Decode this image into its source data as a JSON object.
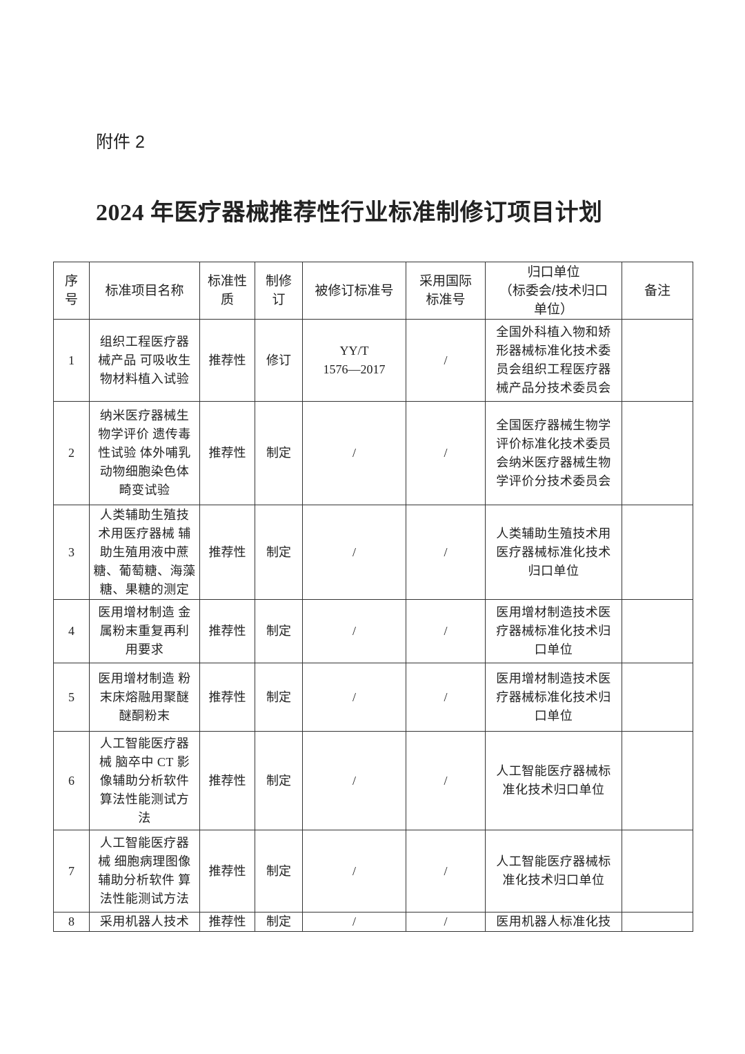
{
  "attachment_label": "附件 2",
  "title": "2024 年医疗器械推荐性行业标准制修订项目计划",
  "table": {
    "headers": [
      "序\n号",
      "标准项目名称",
      "标准性\n质",
      "制修\n订",
      "被修订标准号",
      "采用国际\n标准号",
      "归口单位\n（标委会/技术归口\n单位）",
      "备注"
    ],
    "rows": [
      [
        "1",
        "组织工程医疗器\n械产品  可吸收生\n物材料植入试验",
        "推荐性",
        "修订",
        "YY/T\n1576—2017",
        "/",
        "全国外科植入物和矫\n形器械标准化技术委\n员会组织工程医疗器\n械产品分技术委员会",
        ""
      ],
      [
        "2",
        "纳米医疗器械生\n物学评价  遗传毒\n性试验  体外哺乳\n动物细胞染色体\n畸变试验",
        "推荐性",
        "制定",
        "/",
        "/",
        "全国医疗器械生物学\n评价标准化技术委员\n会纳米医疗器械生物\n学评价分技术委员会",
        ""
      ],
      [
        "3",
        "人类辅助生殖技\n术用医疗器械  辅\n助生殖用液中蔗\n糖、葡萄糖、海藻\n糖、果糖的测定",
        "推荐性",
        "制定",
        "/",
        "/",
        "人类辅助生殖技术用\n医疗器械标准化技术\n归口单位",
        ""
      ],
      [
        "4",
        "医用增材制造  金\n属粉末重复再利\n用要求",
        "推荐性",
        "制定",
        "/",
        "/",
        "医用增材制造技术医\n疗器械标准化技术归\n口单位",
        ""
      ],
      [
        "5",
        "医用增材制造  粉\n末床熔融用聚醚\n醚酮粉末",
        "推荐性",
        "制定",
        "/",
        "/",
        "医用增材制造技术医\n疗器械标准化技术归\n口单位",
        ""
      ],
      [
        "6",
        "人工智能医疗器\n械  脑卒中 CT 影\n像辅助分析软件\n算法性能测试方\n法",
        "推荐性",
        "制定",
        "/",
        "/",
        "人工智能医疗器械标\n准化技术归口单位",
        ""
      ],
      [
        "7",
        "人工智能医疗器\n械  细胞病理图像\n辅助分析软件  算\n法性能测试方法",
        "推荐性",
        "制定",
        "/",
        "/",
        "人工智能医疗器械标\n准化技术归口单位",
        ""
      ],
      [
        "8",
        "采用机器人技术",
        "推荐性",
        "制定",
        "/",
        "/",
        "医用机器人标准化技",
        ""
      ]
    ]
  }
}
